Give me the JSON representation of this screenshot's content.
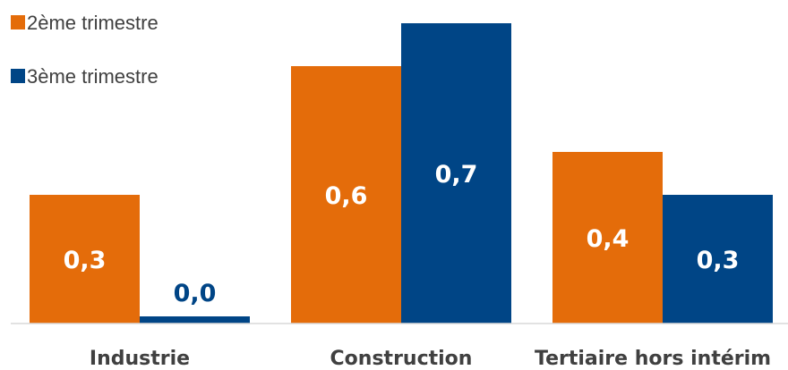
{
  "chart_data": {
    "type": "bar",
    "categories": [
      "Industrie",
      "Construction",
      "Tertiaire hors intérim"
    ],
    "series": [
      {
        "name": "2ème trimestre",
        "values": [
          0.3,
          0.6,
          0.4
        ],
        "labels": [
          "0,3",
          "0,6",
          "0,4"
        ],
        "color": "#E46C0A"
      },
      {
        "name": "3ème trimestre",
        "values": [
          0.0,
          0.7,
          0.3
        ],
        "labels": [
          "0,0",
          "0,7",
          "0,3"
        ],
        "color": "#004586"
      }
    ],
    "title": "",
    "xlabel": "",
    "ylabel": "",
    "ylim": [
      0,
      0.75
    ],
    "grid": false,
    "legend_position": "top-left",
    "label_colors": {
      "inside": "#FFFFFF",
      "above": "#004586"
    },
    "axis_color": "#D9D9D9"
  }
}
